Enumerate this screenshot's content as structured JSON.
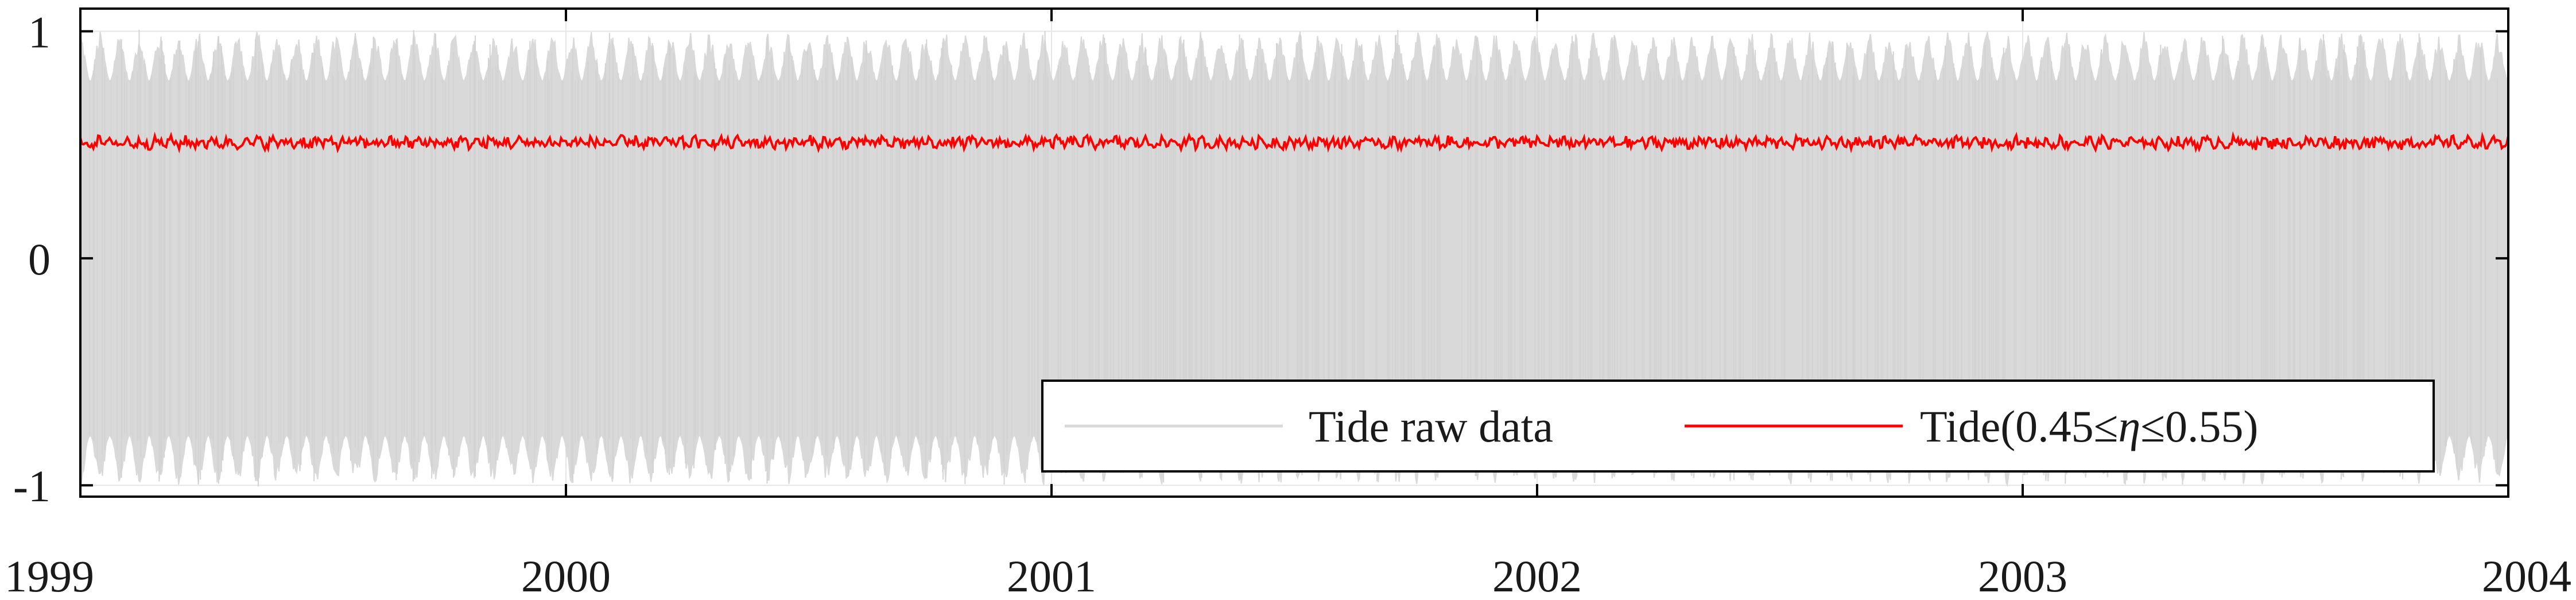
{
  "chart_data": {
    "type": "line",
    "title": "",
    "xlabel": "",
    "ylabel": "",
    "xlim": [
      1999,
      2004
    ],
    "ylim": [
      -1.05,
      1.1
    ],
    "xticks": [
      {
        "value": 1999,
        "label": "1999"
      },
      {
        "value": 2000,
        "label": "2000"
      },
      {
        "value": 2001,
        "label": "2001"
      },
      {
        "value": 2002,
        "label": "2002"
      },
      {
        "value": 2003,
        "label": "2003"
      },
      {
        "value": 2004,
        "label": "2004"
      }
    ],
    "yticks": [
      {
        "value": 1,
        "label": "1"
      },
      {
        "value": 0,
        "label": "0"
      },
      {
        "value": -1,
        "label": "-1"
      }
    ],
    "grid": true,
    "legend_position": "bottom-right",
    "series": [
      {
        "name": "Tide raw data",
        "color": "#d9d9d9",
        "kind": "dense-oscillation",
        "envelope_max": 1.0,
        "envelope_min": -1.0,
        "envelope_typical_high": 0.78,
        "envelope_typical_low": -0.78
      },
      {
        "name": "Tide(0.45≤η≤0.55)",
        "color": "#ff0000",
        "kind": "band-series",
        "mean": 0.51,
        "range": [
          0.45,
          0.55
        ]
      }
    ]
  },
  "legend": {
    "raw_label": "Tide raw data",
    "band_label_prefix": "Tide(0.45",
    "band_label_eta": "η",
    "band_label_mid": "0.55)",
    "leq_symbol": "≤"
  }
}
